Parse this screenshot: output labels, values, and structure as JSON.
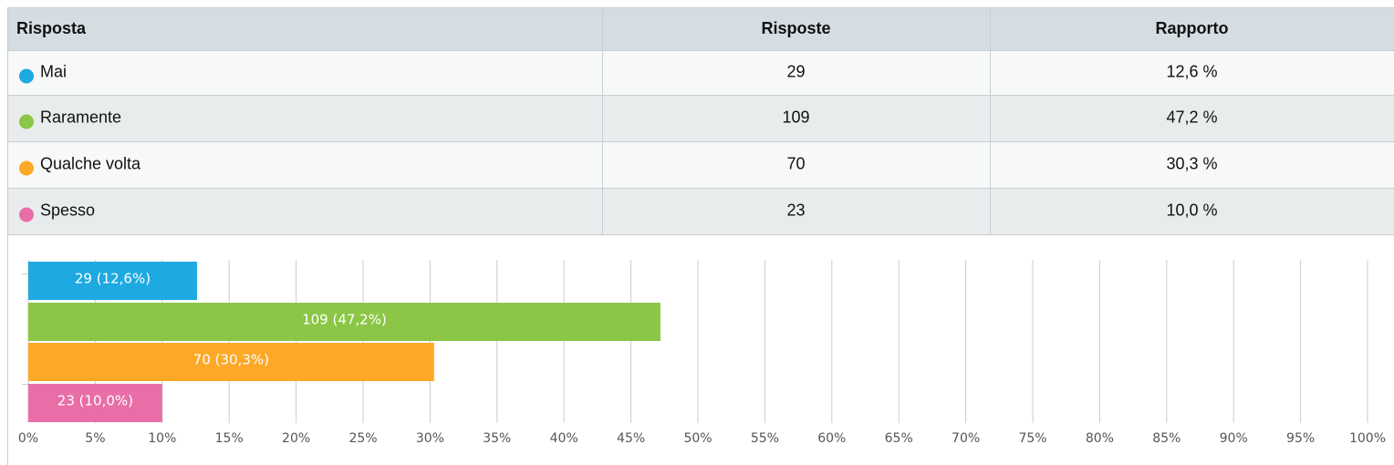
{
  "table": {
    "header": [
      "Risposta",
      "Risposte",
      "Rapporto"
    ],
    "rows": [
      [
        "Mai",
        "29",
        "12,6 %"
      ],
      [
        "Raramente",
        "109",
        "47,2 %"
      ],
      [
        "Qualche volta",
        "70",
        "30,3 %"
      ],
      [
        "Spesso",
        "23",
        "10,0 %"
      ]
    ]
  },
  "chart_data": {
    "type": "bar",
    "orientation": "horizontal",
    "values": [
      12.6,
      47.2,
      30.3,
      10.0
    ],
    "value_labels": [
      "29 (12,6%)",
      "109 (47,2%)",
      "70 (30,3%)",
      "23 (10,0%)"
    ],
    "colors": [
      "#1fa9e1",
      "#8bc646",
      "#fda927",
      "#e96ea7"
    ],
    "xlim": [
      0,
      100
    ],
    "xticks": [
      {
        "value": 0,
        "label": "0%"
      },
      {
        "value": 5,
        "label": "5%"
      },
      {
        "value": 10,
        "label": "10%"
      },
      {
        "value": 15,
        "label": "15%"
      },
      {
        "value": 20,
        "label": "20%"
      },
      {
        "value": 25,
        "label": "25%"
      },
      {
        "value": 30,
        "label": "30%"
      },
      {
        "value": 35,
        "label": "35%"
      },
      {
        "value": 40,
        "label": "40%"
      },
      {
        "value": 45,
        "label": "45%"
      },
      {
        "value": 50,
        "label": "50%"
      },
      {
        "value": 55,
        "label": "55%"
      },
      {
        "value": 60,
        "label": "60%"
      },
      {
        "value": 65,
        "label": "65%"
      },
      {
        "value": 70,
        "label": "70%"
      },
      {
        "value": 75,
        "label": "75%"
      },
      {
        "value": 80,
        "label": "80%"
      },
      {
        "value": 85,
        "label": "85%"
      },
      {
        "value": 90,
        "label": "90%"
      },
      {
        "value": 95,
        "label": "95%"
      },
      {
        "value": 100,
        "label": "100%"
      }
    ],
    "grid": true
  }
}
